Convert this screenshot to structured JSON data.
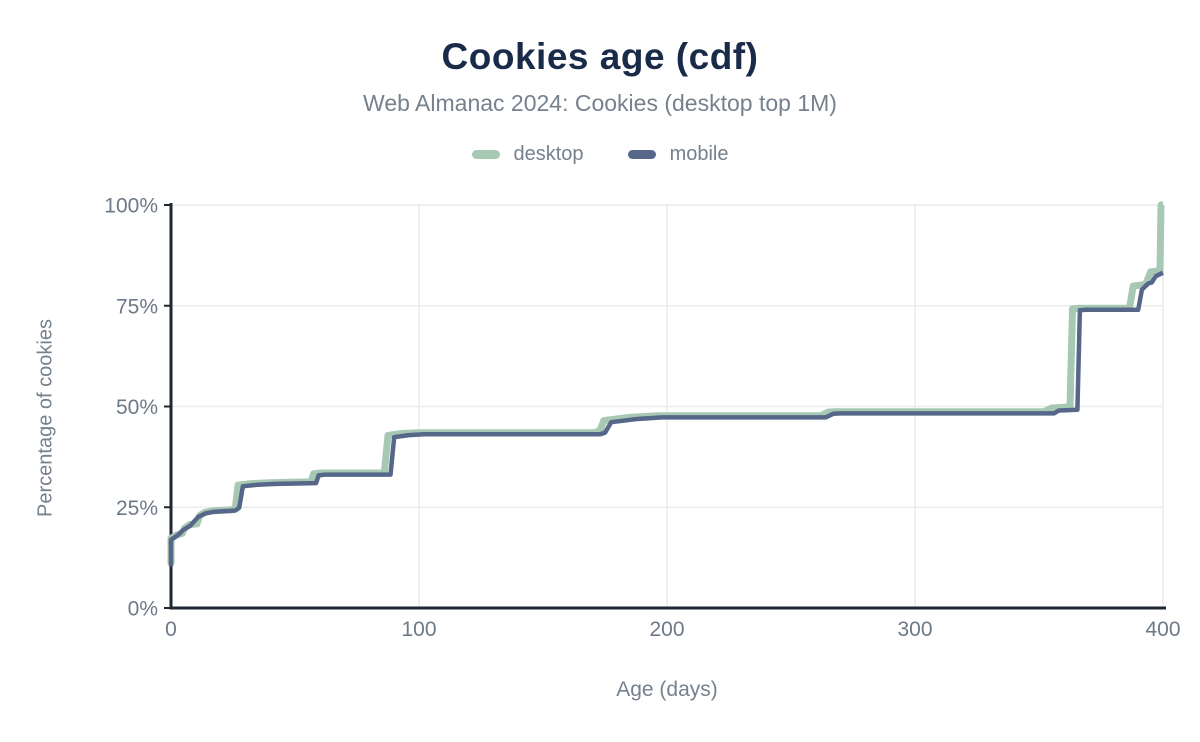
{
  "header": {
    "title": "Cookies age (cdf)",
    "subtitle": "Web Almanac 2024: Cookies (desktop top 1M)"
  },
  "colors": {
    "title": "#1a2b49",
    "muted_text": "#76818e",
    "tick_text": "#6e7987",
    "axis": "#1f2733",
    "grid": "#ececec",
    "desktop_series": "#a7c9b3",
    "mobile_series": "#56678a",
    "background": "#ffffff"
  },
  "chart_data": {
    "type": "line",
    "subtype": "step-cdf",
    "title": "Cookies age (cdf)",
    "subtitle": "Web Almanac 2024: Cookies (desktop top 1M)",
    "xlabel": "Age (days)",
    "ylabel": "Percentage of cookies",
    "xlim": [
      0,
      400
    ],
    "ylim": [
      0,
      100
    ],
    "grid": true,
    "legend_position": "top",
    "x_ticks": [
      {
        "value": 0,
        "label": "0"
      },
      {
        "value": 100,
        "label": "100"
      },
      {
        "value": 200,
        "label": "200"
      },
      {
        "value": 300,
        "label": "300"
      },
      {
        "value": 400,
        "label": "400"
      }
    ],
    "y_ticks": [
      {
        "value": 0,
        "label": "0%"
      },
      {
        "value": 25,
        "label": "25%"
      },
      {
        "value": 50,
        "label": "50%"
      },
      {
        "value": 75,
        "label": "75%"
      },
      {
        "value": 100,
        "label": "100%"
      }
    ],
    "series": [
      {
        "name": "desktop",
        "color": "#a7c9b3",
        "width": 7,
        "points": [
          [
            0,
            10.8
          ],
          [
            0,
            17.3
          ],
          [
            2.5,
            18.2
          ],
          [
            4.5,
            18.5
          ],
          [
            5.5,
            19.8
          ],
          [
            7.5,
            20.7
          ],
          [
            10.5,
            20.9
          ],
          [
            11.5,
            22.9
          ],
          [
            13.5,
            23.7
          ],
          [
            16.5,
            24.1
          ],
          [
            25,
            24.4
          ],
          [
            26,
            25.1
          ],
          [
            27,
            30.5
          ],
          [
            33,
            30.9
          ],
          [
            40,
            31.1
          ],
          [
            48,
            31.2
          ],
          [
            56.5,
            31.3
          ],
          [
            57.5,
            33.3
          ],
          [
            60,
            33.5
          ],
          [
            86,
            33.5
          ],
          [
            87.5,
            42.8
          ],
          [
            93,
            43.3
          ],
          [
            100,
            43.5
          ],
          [
            171,
            43.5
          ],
          [
            173,
            44.1
          ],
          [
            174.5,
            46.5
          ],
          [
            185,
            47.3
          ],
          [
            196,
            47.7
          ],
          [
            262,
            47.7
          ],
          [
            265,
            48.6
          ],
          [
            268,
            48.7
          ],
          [
            352,
            48.7
          ],
          [
            355,
            49.6
          ],
          [
            360,
            49.8
          ],
          [
            362.5,
            49.9
          ],
          [
            363.5,
            74.2
          ],
          [
            366,
            74.4
          ],
          [
            386.5,
            74.4
          ],
          [
            388,
            79.9
          ],
          [
            393,
            80.3
          ],
          [
            395,
            83.4
          ],
          [
            397.5,
            83.6
          ],
          [
            398.8,
            83.8
          ],
          [
            399.2,
            100
          ],
          [
            400,
            100
          ]
        ]
      },
      {
        "name": "mobile",
        "color": "#56678a",
        "width": 4.5,
        "points": [
          [
            0,
            10.3
          ],
          [
            0,
            16.9
          ],
          [
            3,
            18.2
          ],
          [
            5,
            19.4
          ],
          [
            7.7,
            20.4
          ],
          [
            11,
            22.6
          ],
          [
            14,
            23.5
          ],
          [
            17.5,
            23.9
          ],
          [
            26,
            24.2
          ],
          [
            27.5,
            24.9
          ],
          [
            29,
            30.2
          ],
          [
            35,
            30.6
          ],
          [
            42,
            30.8
          ],
          [
            50,
            30.9
          ],
          [
            58.5,
            31
          ],
          [
            59.5,
            32.9
          ],
          [
            62,
            33.1
          ],
          [
            88.5,
            33.1
          ],
          [
            90,
            42.4
          ],
          [
            96,
            42.9
          ],
          [
            102,
            43.1
          ],
          [
            173,
            43.1
          ],
          [
            175,
            43.5
          ],
          [
            177.5,
            46.1
          ],
          [
            188,
            46.9
          ],
          [
            198,
            47.3
          ],
          [
            264,
            47.3
          ],
          [
            267,
            48.2
          ],
          [
            270,
            48.3
          ],
          [
            356,
            48.3
          ],
          [
            358,
            49
          ],
          [
            362,
            49.1
          ],
          [
            365.5,
            49.2
          ],
          [
            366.5,
            73.9
          ],
          [
            369,
            74
          ],
          [
            390,
            74
          ],
          [
            391.5,
            79
          ],
          [
            394,
            80.5
          ],
          [
            395.5,
            80.8
          ],
          [
            397,
            82.3
          ],
          [
            400,
            83.2
          ]
        ]
      }
    ]
  }
}
